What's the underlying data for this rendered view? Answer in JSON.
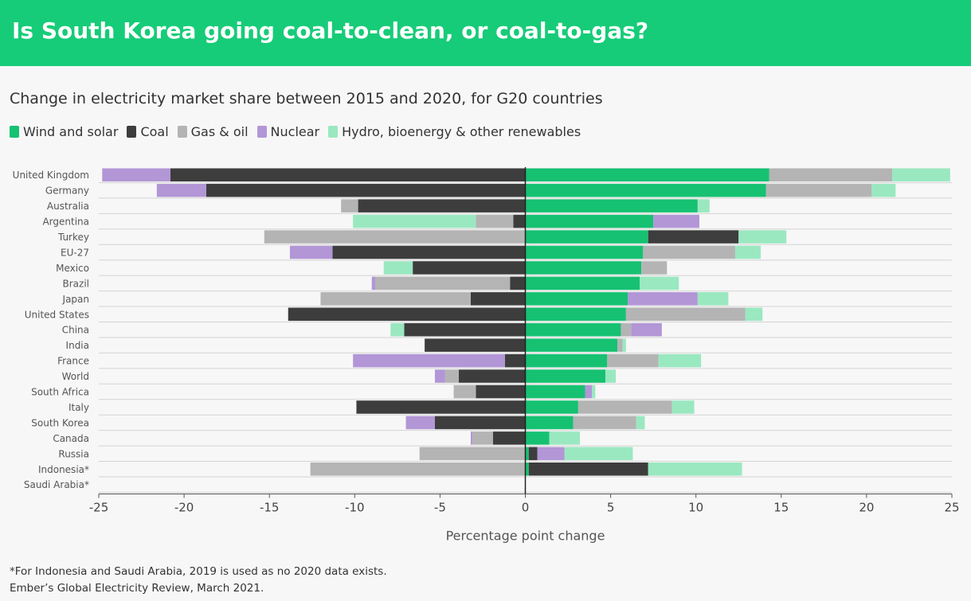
{
  "header": {
    "title": "Is South Korea going coal-to-clean, or coal-to-gas?"
  },
  "subtitle": "Change in electricity market share between 2015 and 2020, for G20 countries",
  "colors": {
    "header_bg": "#16cc78",
    "wind_solar": "#16c172",
    "coal": "#3d3d3d",
    "gas_oil": "#b4b4b4",
    "nuclear": "#b296d6",
    "hydro_other": "#9ae8c0"
  },
  "legend": [
    {
      "label": "Wind and solar",
      "color": "#16c172"
    },
    {
      "label": "Coal",
      "color": "#3d3d3d"
    },
    {
      "label": "Gas & oil",
      "color": "#b4b4b4"
    },
    {
      "label": "Nuclear",
      "color": "#b296d6"
    },
    {
      "label": "Hydro, bioenergy & other renewables",
      "color": "#9ae8c0"
    }
  ],
  "chart_data": {
    "type": "bar",
    "orientation": "horizontal",
    "stacked": "diverging",
    "xlabel": "Percentage point change",
    "xlim": [
      -25,
      25
    ],
    "xticks": [
      -25,
      -20,
      -15,
      -10,
      -5,
      0,
      5,
      10,
      15,
      20,
      25
    ],
    "xtick_labels": [
      "-25",
      "-20",
      "-15",
      "-10",
      "-5",
      "0",
      "5",
      "10",
      "15",
      "20",
      "25"
    ],
    "grid": "horizontal row lines",
    "legend_position": "top-left",
    "categories": [
      "United Kingdom",
      "Germany",
      "Australia",
      "Argentina",
      "Turkey",
      "EU-27",
      "Mexico",
      "Brazil",
      "Japan",
      "United States",
      "China",
      "India",
      "France",
      "World",
      "South Africa",
      "Italy",
      "South Korea",
      "Canada",
      "Russia",
      "Indonesia*",
      "Saudi Arabia*"
    ],
    "series": [
      {
        "name": "Wind and solar",
        "color": "#16c172",
        "values": [
          14.3,
          14.1,
          10.1,
          7.5,
          7.2,
          6.9,
          6.8,
          6.7,
          6.0,
          5.9,
          5.6,
          5.4,
          4.8,
          4.7,
          3.5,
          3.1,
          2.8,
          1.4,
          0.2,
          0.2,
          0.0
        ]
      },
      {
        "name": "Coal",
        "color": "#3d3d3d",
        "values": [
          -20.8,
          -18.7,
          -9.8,
          -0.7,
          5.3,
          -11.3,
          -6.6,
          -0.9,
          -3.2,
          -13.9,
          -7.1,
          -5.9,
          -1.2,
          -3.9,
          -2.9,
          -9.9,
          -5.3,
          -1.9,
          0.5,
          7.0,
          0.0
        ]
      },
      {
        "name": "Gas & oil",
        "color": "#b4b4b4",
        "values": [
          7.2,
          6.2,
          -1.0,
          -2.2,
          -15.3,
          5.4,
          1.5,
          -7.9,
          -8.8,
          7.0,
          0.6,
          0.3,
          3.0,
          -0.8,
          -1.3,
          5.5,
          3.7,
          -1.2,
          -6.2,
          -12.6,
          0.0
        ]
      },
      {
        "name": "Nuclear",
        "color": "#b296d6",
        "values": [
          -4.0,
          -2.9,
          0.0,
          2.7,
          0.0,
          -2.5,
          0.0,
          -0.2,
          4.1,
          0.0,
          1.8,
          0.0,
          -8.9,
          -0.6,
          0.4,
          0.0,
          -1.7,
          -0.1,
          1.6,
          0.0,
          0.0
        ]
      },
      {
        "name": "Hydro, bioenergy & other renewables",
        "color": "#9ae8c0",
        "values": [
          3.4,
          1.4,
          0.7,
          -7.2,
          2.8,
          1.5,
          -1.7,
          2.3,
          1.8,
          1.0,
          -0.8,
          0.2,
          2.5,
          0.6,
          0.2,
          1.3,
          0.5,
          1.8,
          4.0,
          5.5,
          0.0
        ]
      }
    ]
  },
  "footnotes": [
    "*For Indonesia and Saudi Arabia, 2019 is used as no 2020 data exists.",
    "Ember’s Global Electricity Review, March 2021."
  ]
}
